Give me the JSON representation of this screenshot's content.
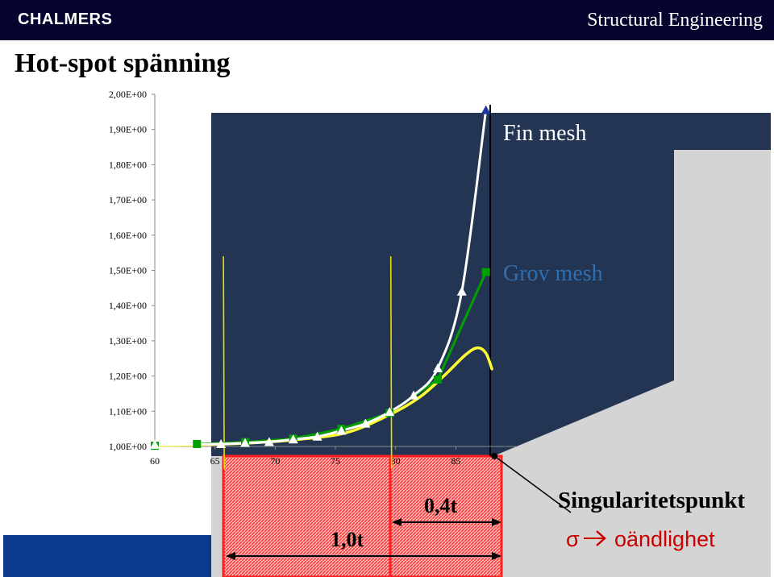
{
  "header": {
    "brand": "CHALMERS",
    "department": "Structural Engineering",
    "title": "Hot-spot spänning"
  },
  "colors": {
    "header_bg": "#04042e",
    "navy_panel": "#243553",
    "grey_plate": "#d4d4d4",
    "fine_mesh": "#ffffff",
    "coarse_mesh": "#00a000",
    "extrapolation": "#ffff33",
    "weld_zone": "#ff1f1f",
    "reference_lines": "#e8e000",
    "blue_bar": "#0b3a8c"
  },
  "chart_data": {
    "type": "line",
    "xlim": [
      60,
      90
    ],
    "ylim": [
      1.0,
      2.0
    ],
    "xticks": [
      60,
      65,
      70,
      75,
      80,
      85
    ],
    "xtick_labels": [
      "60",
      "65",
      "70",
      "75",
      "80",
      "85"
    ],
    "yticks": [
      1.0,
      1.1,
      1.2,
      1.3,
      1.4,
      1.5,
      1.6,
      1.7,
      1.8,
      1.9,
      2.0
    ],
    "ytick_labels": [
      "1,00E+00",
      "1,10E+00",
      "1,20E+00",
      "1,30E+00",
      "1,40E+00",
      "1,50E+00",
      "1,60E+00",
      "1,70E+00",
      "1,80E+00",
      "1,90E+00",
      "2,00E+00"
    ],
    "grid": false,
    "series": [
      {
        "key": "fine",
        "marker": "triangle",
        "points": [
          [
            60,
            1.005
          ],
          [
            65.5,
            1.007
          ],
          [
            67.5,
            1.01
          ],
          [
            69.5,
            1.013
          ],
          [
            71.5,
            1.02
          ],
          [
            73.5,
            1.028
          ],
          [
            75.5,
            1.045
          ],
          [
            77.5,
            1.065
          ],
          [
            79.5,
            1.098
          ],
          [
            81.5,
            1.145
          ],
          [
            83.5,
            1.222
          ],
          [
            85.5,
            1.44
          ],
          [
            87.5,
            1.955
          ]
        ]
      },
      {
        "key": "coarse",
        "marker": "square",
        "points": [
          [
            60,
            1.002
          ],
          [
            63.5,
            1.007
          ],
          [
            67.5,
            1.012
          ],
          [
            71.5,
            1.022
          ],
          [
            75.5,
            1.05
          ],
          [
            79.5,
            1.095
          ],
          [
            83.5,
            1.19
          ],
          [
            87.5,
            1.495
          ]
        ]
      },
      {
        "key": "extrapolated",
        "marker": "none",
        "points": [
          [
            60,
            1.003
          ],
          [
            64,
            1.005
          ],
          [
            68,
            1.01
          ],
          [
            72,
            1.02
          ],
          [
            76,
            1.04
          ],
          [
            79.5,
            1.09
          ],
          [
            82,
            1.14
          ],
          [
            84,
            1.2
          ],
          [
            85.8,
            1.26
          ],
          [
            86.8,
            1.28
          ],
          [
            87.5,
            1.265
          ],
          [
            88,
            1.22
          ]
        ]
      }
    ],
    "reference_lines_x": [
      65.7,
      79.6
    ],
    "singularity_x": 88.2,
    "annotations": {
      "fine_mesh": "Fin mesh",
      "coarse_mesh": "Grov mesh",
      "dim_10t": "1,0t",
      "dim_04t": "0,4t",
      "singularity": "Singularitetspunkt",
      "sigma_arrow": "σ",
      "sigma_infinity": "oändlighet"
    }
  }
}
